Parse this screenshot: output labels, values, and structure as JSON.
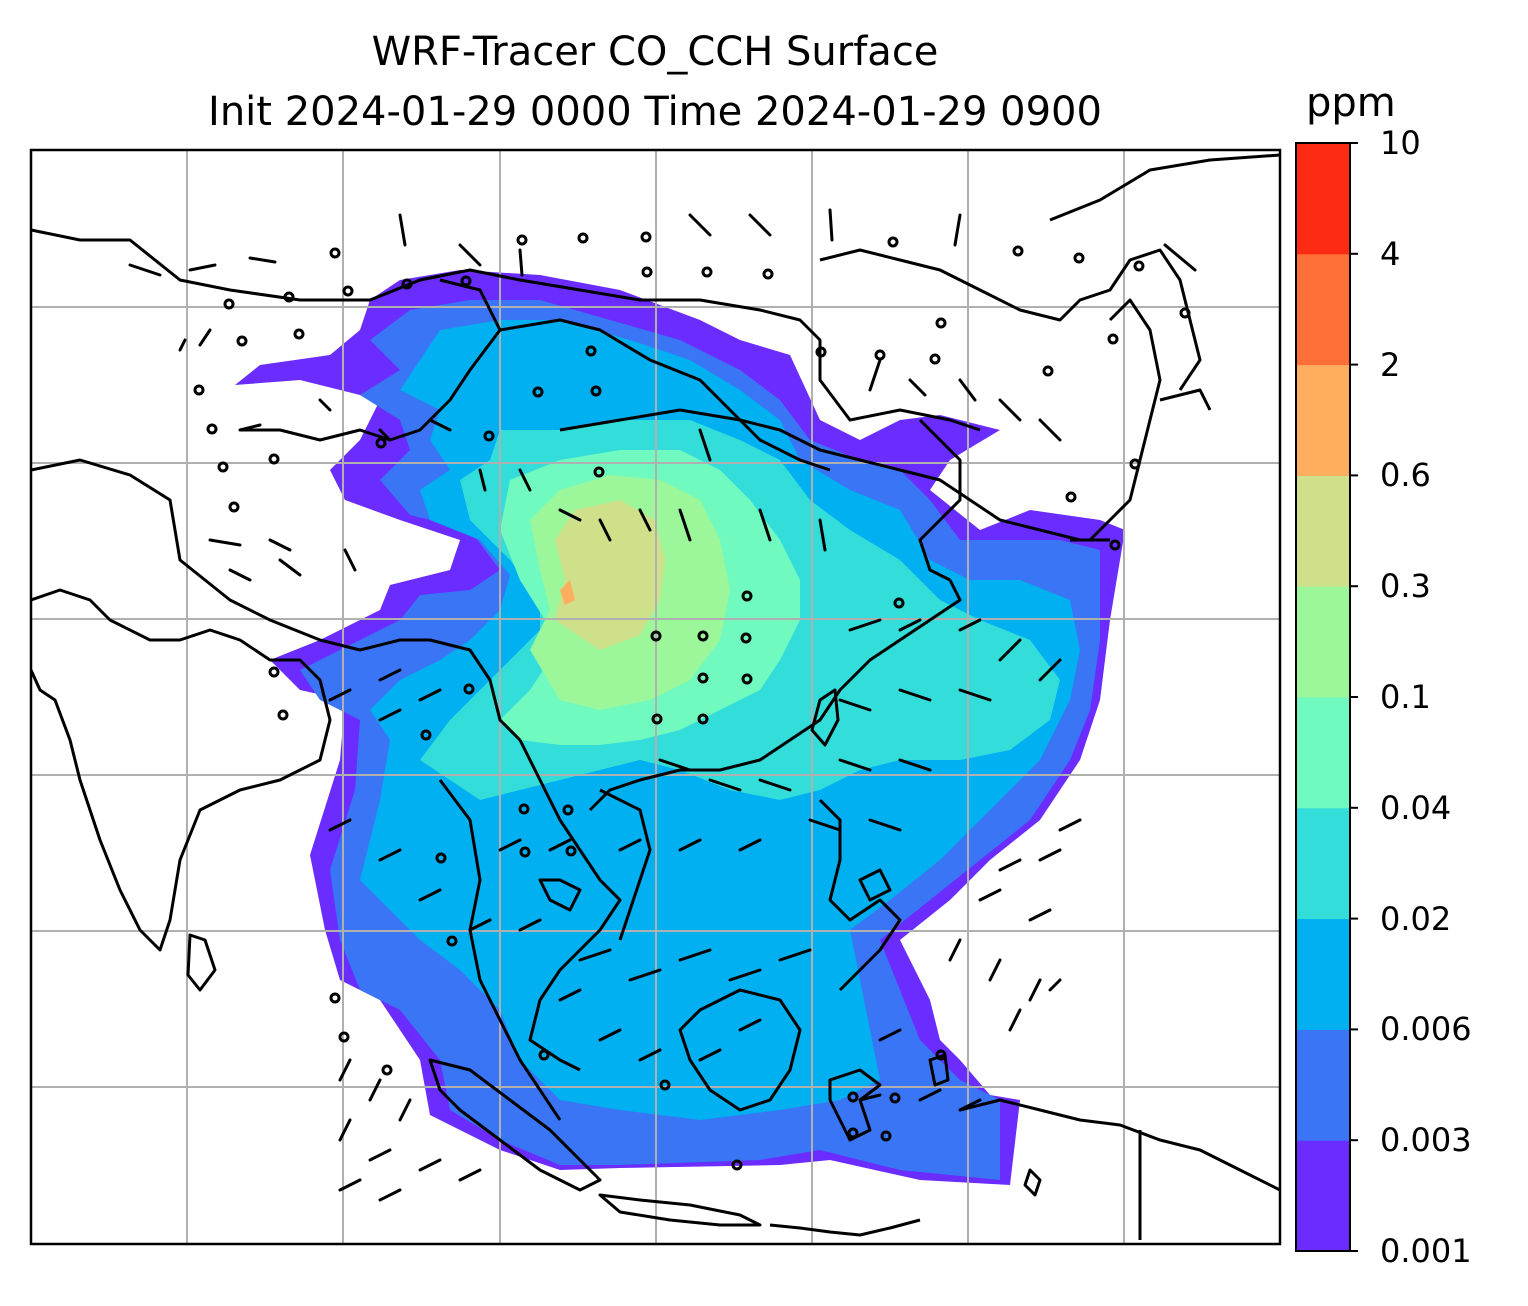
{
  "title_line1": "WRF-Tracer CO_CCH Surface",
  "title_line2": "Init 2024-01-29 0000 Time 2024-01-29 0900",
  "colorbar": {
    "unit": "ppm",
    "levels": [
      "0.001",
      "0.003",
      "0.006",
      "0.02",
      "0.04",
      "0.1",
      "0.3",
      "0.6",
      "2",
      "4",
      "10"
    ],
    "colors": [
      "#6a2cff",
      "#3975f5",
      "#00b0f0",
      "#33ddd9",
      "#70fabf",
      "#9cf79a",
      "#cfe08a",
      "#ffad5e",
      "#ff7038",
      "#ff2a13"
    ]
  },
  "map": {
    "field": "CO_CCH surface concentration",
    "overlay": "wind barbs",
    "graticule": true
  }
}
